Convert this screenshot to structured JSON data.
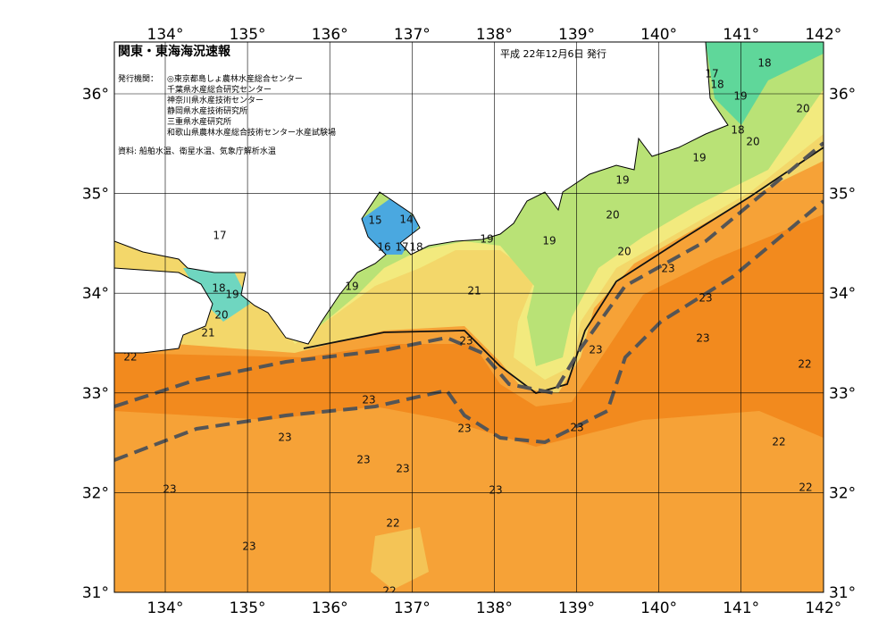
{
  "header": {
    "title": "関東・東海海況速報",
    "date": "平成 22年12月6日 発行",
    "issuer_label": "発行機関：",
    "issuers": [
      "◎東京都島しょ農林水産総合センター",
      "千葉県水産総合研究センター",
      "神奈川県水産技術センター",
      "静岡県水産技術研究所",
      "三重県水産研究所",
      "和歌山県農林水産総合技術センター水産試験場"
    ],
    "source": "資料: 船舶水温、衛星水温、気象庁解析水温"
  },
  "axes": {
    "lon_labels": [
      "134°",
      "135°",
      "136°",
      "137°",
      "138°",
      "139°",
      "140°",
      "141°",
      "142°"
    ],
    "lat_labels": [
      "36°",
      "35°",
      "34°",
      "33°",
      "32°",
      "31°"
    ]
  },
  "contour_labels": [
    "17",
    "18",
    "18",
    "19",
    "20",
    "18",
    "20",
    "19",
    "19",
    "20",
    "20",
    "19",
    "19",
    "23",
    "23",
    "23",
    "23",
    "22",
    "23",
    "22",
    "22",
    "21",
    "23",
    "23",
    "23",
    "23",
    "23",
    "23",
    "23",
    "23",
    "22",
    "23",
    "22",
    "22",
    "21",
    "20",
    "18",
    "19",
    "17",
    "19",
    "15",
    "14",
    "16",
    "17",
    "18"
  ]
}
